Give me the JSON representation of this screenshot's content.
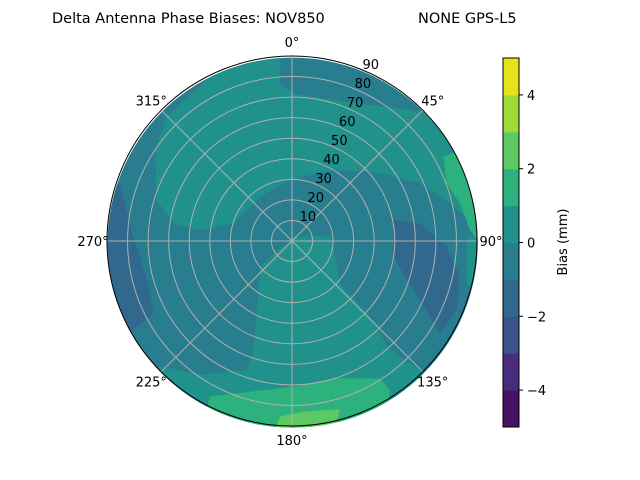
{
  "chart_data": {
    "type": "heatmap",
    "subtype": "polar filled contour",
    "title_left": "Delta Antenna Phase Biases: NOV850",
    "title_right": "NONE GPS-L5",
    "theta_direction": "clockwise",
    "theta_zero": "north",
    "theta_tick_labels": [
      "0°",
      "45°",
      "90°",
      "135°",
      "180°",
      "225°",
      "270°",
      "315°"
    ],
    "r_tick_labels": [
      "10",
      "20",
      "30",
      "40",
      "50",
      "60",
      "70",
      "80",
      "90"
    ],
    "r_range": [
      0,
      90
    ],
    "grid": true,
    "colorbar": {
      "label": "Bias (mm)",
      "range": [
        -5,
        5
      ],
      "levels": [
        -5,
        -4,
        -3,
        -2,
        -1,
        0,
        1,
        2,
        3,
        4,
        5
      ],
      "tick_labels": [
        "−4",
        "−2",
        "0",
        "2",
        "4"
      ],
      "tick_values": [
        -4,
        -2,
        0,
        2,
        4
      ],
      "colormap": "viridis",
      "colors": [
        "#471365",
        "#472d7b",
        "#3b528b",
        "#31688e",
        "#287d8e",
        "#21918c",
        "#2db27d",
        "#5ec962",
        "#a0da39",
        "#e5e419"
      ]
    },
    "regions": [
      {
        "level_range": [
          -1,
          0
        ],
        "description_of_location": "background band"
      },
      {
        "level_range": [
          0,
          1
        ],
        "location": "north-west and south lobes"
      },
      {
        "level_range": [
          -2,
          -1
        ],
        "location": "east near 100-130° and west edge"
      },
      {
        "level_range": [
          1,
          2
        ],
        "location": "near 60-80° edge and south near 160-200°"
      },
      {
        "level_range": [
          2,
          3
        ],
        "location": "south edge near 175-190°"
      }
    ]
  }
}
